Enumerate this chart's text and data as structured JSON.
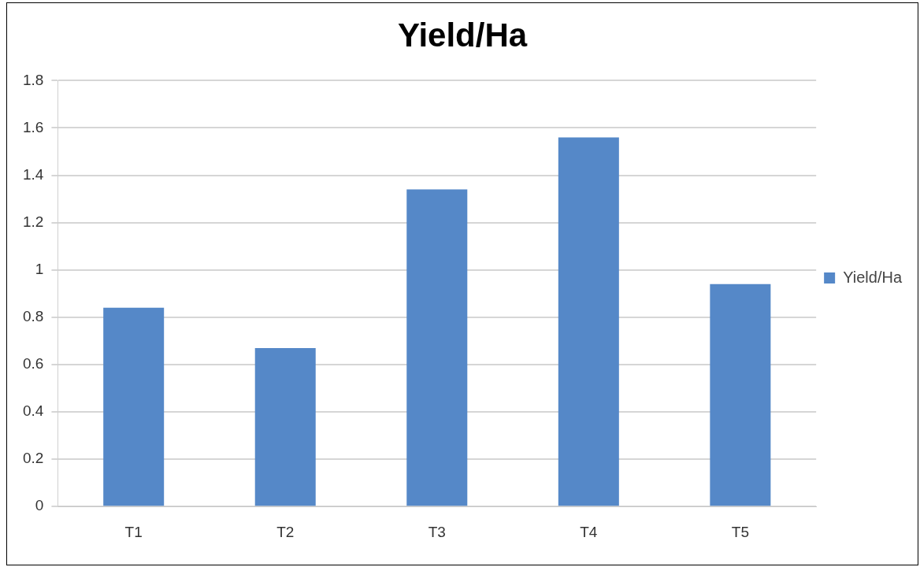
{
  "chart_data": {
    "type": "bar",
    "title": "Yield/Ha",
    "categories": [
      "T1",
      "T2",
      "T3",
      "T4",
      "T5"
    ],
    "series": [
      {
        "name": "Yield/Ha",
        "color": "#5588c8",
        "values": [
          0.84,
          0.67,
          1.34,
          1.56,
          0.94
        ]
      }
    ],
    "ylim": [
      0,
      1.8
    ],
    "yticks": [
      0,
      0.2,
      0.4,
      0.6,
      0.8,
      1,
      1.2,
      1.4,
      1.6,
      1.8
    ],
    "grid": "y",
    "legend": "right"
  }
}
